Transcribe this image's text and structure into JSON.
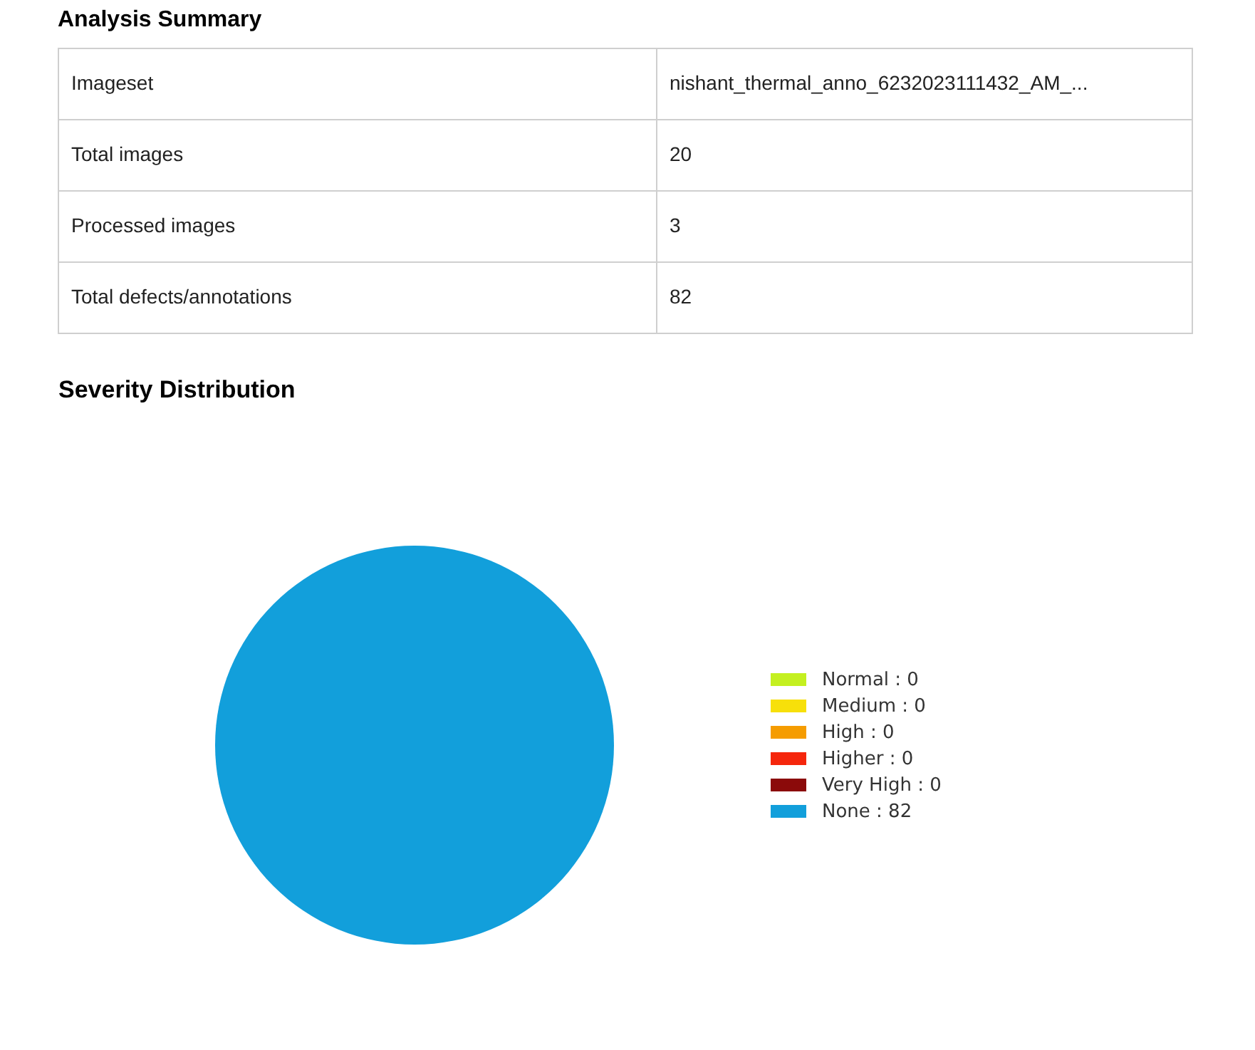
{
  "chart_data": [
    {
      "type": "other",
      "title": "Analysis Summary",
      "annotations": [
        "Imageset",
        "nishant_thermal_anno_6232023111432_AM_...",
        "Total images",
        "20",
        "Processed images",
        "3",
        "Total defects/annotations",
        "82"
      ]
    },
    {
      "type": "pie",
      "title": "Severity Distribution",
      "categories": [
        "Normal : 0",
        "Medium : 0",
        "High : 0",
        "Higher : 0",
        "Very High : 0",
        "None : 82"
      ],
      "values": [
        0,
        0,
        0,
        0,
        0,
        82
      ],
      "colors": [
        "#c4f020",
        "#f7e00a",
        "#f59c00",
        "#f5260c",
        "#8b0a0a",
        "#129fdb"
      ],
      "legend": "right"
    }
  ]
}
